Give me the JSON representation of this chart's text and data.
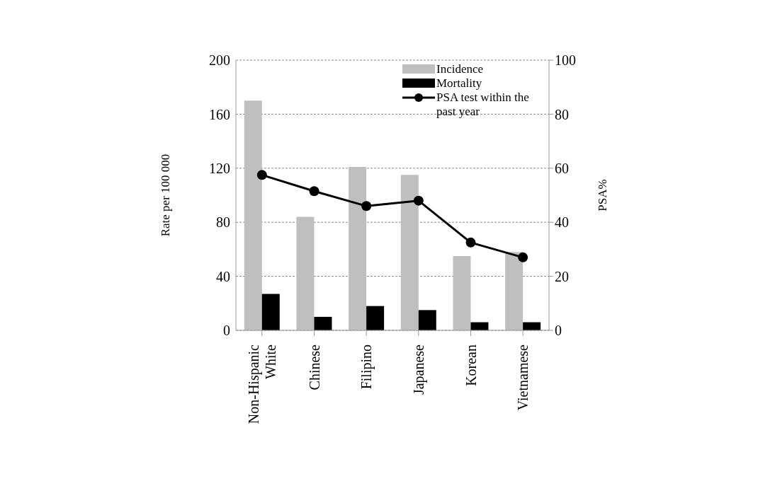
{
  "chart_data": {
    "type": "bar",
    "categories": [
      "Non-Hispanic White",
      "Chinese",
      "Filipino",
      "Japanese",
      "Korean",
      "Vietnamese"
    ],
    "series": [
      {
        "name": "Incidence",
        "color": "#bfbfbf",
        "values": [
          170,
          84,
          121,
          115,
          55,
          58
        ]
      },
      {
        "name": "Mortality",
        "color": "#000000",
        "values": [
          27,
          10,
          18,
          15,
          6,
          6
        ]
      },
      {
        "name": "PSA test within the past year",
        "type": "line",
        "axis": "y2",
        "color": "#000000",
        "values": [
          57.5,
          51.5,
          46,
          48,
          32.5,
          27
        ]
      }
    ],
    "ylabel": "Rate per 100 000",
    "y2label": "PSA%",
    "ylim": [
      0,
      200
    ],
    "yticks": [
      0,
      40,
      80,
      120,
      160,
      200
    ],
    "y2lim": [
      0,
      100
    ],
    "y2ticks": [
      0,
      20,
      40,
      60,
      80,
      100
    ],
    "grid": "y",
    "legend": "top right",
    "marker": "circle",
    "line_style": "solid"
  }
}
